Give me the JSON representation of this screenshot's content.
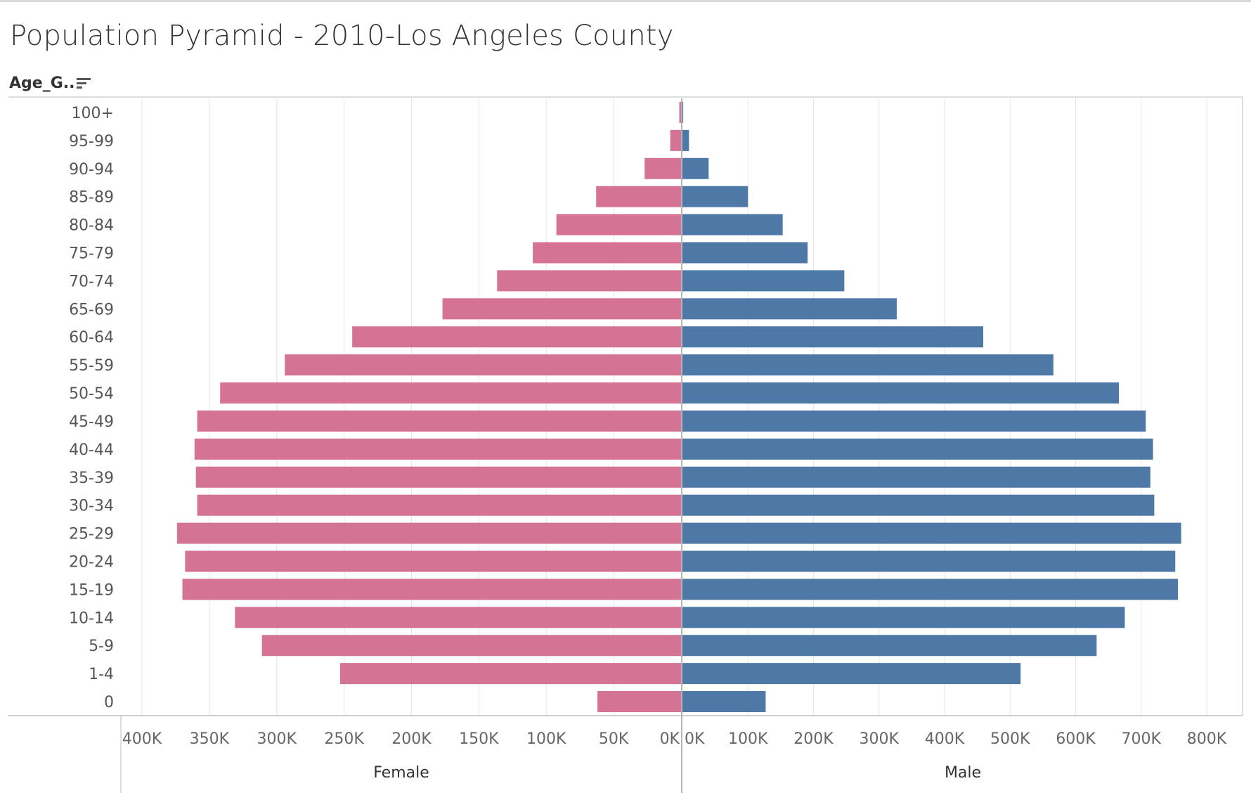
{
  "title": "Population Pyramid - 2010-Los Angeles County",
  "row_header": "Age_G..",
  "icons": {
    "sort": "sort-descending-icon"
  },
  "colors": {
    "female": "#d47394",
    "male": "#4e79a7",
    "grid": "#e6e6e6",
    "axis": "#bdbdbd"
  },
  "chart_data": [
    {
      "type": "bar",
      "orientation": "horizontal",
      "xlabel": "Female",
      "reversed": true,
      "xlim": [
        0,
        400000
      ],
      "ticks": [
        0,
        50000,
        100000,
        150000,
        200000,
        250000,
        300000,
        350000,
        400000
      ],
      "tick_labels": [
        "0K",
        "50K",
        "100K",
        "150K",
        "200K",
        "250K",
        "300K",
        "350K",
        "400K"
      ],
      "categories": [
        "100+",
        "95-99",
        "90-94",
        "85-89",
        "80-84",
        "75-79",
        "70-74",
        "65-69",
        "60-64",
        "55-59",
        "50-54",
        "45-49",
        "40-44",
        "35-39",
        "30-34",
        "25-29",
        "20-24",
        "15-19",
        "10-14",
        "5-9",
        "1-4",
        "0"
      ],
      "series": [
        {
          "values": [
            1300,
            8000,
            27000,
            63000,
            92500,
            110000,
            136500,
            177000,
            244000,
            294000,
            342000,
            359000,
            361000,
            360000,
            359000,
            374000,
            368000,
            370000,
            331000,
            311000,
            253000,
            62000
          ]
        }
      ]
    },
    {
      "type": "bar",
      "orientation": "horizontal",
      "xlabel": "Male",
      "xlim": [
        0,
        800000
      ],
      "ticks": [
        0,
        100000,
        200000,
        300000,
        400000,
        500000,
        600000,
        700000,
        800000
      ],
      "tick_labels": [
        "0K",
        "100K",
        "200K",
        "300K",
        "400K",
        "500K",
        "600K",
        "700K",
        "800K"
      ],
      "categories": [
        "100+",
        "95-99",
        "90-94",
        "85-89",
        "80-84",
        "75-79",
        "70-74",
        "65-69",
        "60-64",
        "55-59",
        "50-54",
        "45-49",
        "40-44",
        "35-39",
        "30-34",
        "25-29",
        "20-24",
        "15-19",
        "10-14",
        "5-9",
        "1-4",
        "0"
      ],
      "series": [
        {
          "values": [
            1200,
            10000,
            40000,
            100000,
            153000,
            191000,
            247000,
            327000,
            459000,
            566000,
            666000,
            707000,
            718000,
            714000,
            720000,
            761000,
            752000,
            756000,
            675000,
            632000,
            516000,
            127000
          ]
        }
      ]
    }
  ]
}
